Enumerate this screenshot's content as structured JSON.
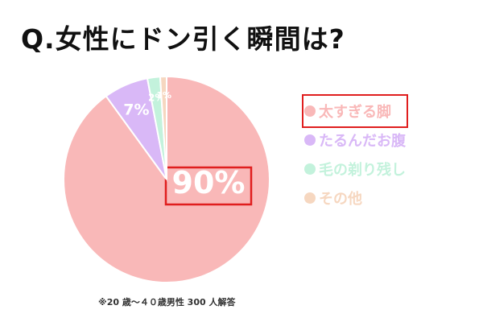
{
  "title": "Q.女性にドン引く瞬間は?",
  "note": "※20 歳〜４０歳男性 300 人解答",
  "chart_data": {
    "type": "pie",
    "title": "Q.女性にドン引く瞬間は?",
    "categories": [
      "太すぎる脚",
      "たるんだお腹",
      "毛の剃り残し",
      "その他"
    ],
    "values": [
      90,
      7,
      2,
      1
    ],
    "data_labels": [
      "90%",
      "7%",
      "2%",
      "1%"
    ],
    "colors": [
      "#f9b8b8",
      "#d9b8f7",
      "#c3f2dc",
      "#f6d7c0"
    ],
    "label_colors": [
      "#ffffff",
      "#ffffff",
      "#ffffff",
      "#ffffff"
    ],
    "highlight_category": "太すぎる脚",
    "highlight_color": "#e01e1e",
    "legend_placement": "right"
  }
}
